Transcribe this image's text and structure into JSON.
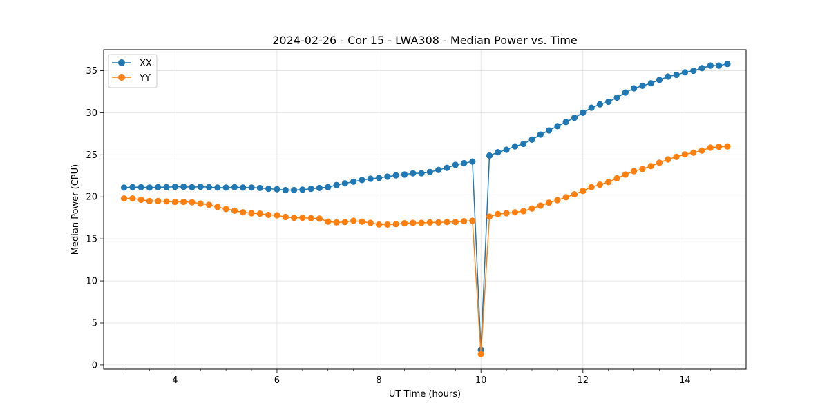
{
  "chart_data": {
    "type": "line",
    "title": "2024-02-26 - Cor 15 - LWA308 - Median Power vs. Time",
    "xlabel": "UT Time (hours)",
    "ylabel": "Median Power (CPU)",
    "xlim": [
      2.6,
      15.2
    ],
    "ylim": [
      -0.5,
      37.5
    ],
    "xticks": [
      4,
      6,
      8,
      10,
      12,
      14
    ],
    "yticks": [
      0,
      5,
      10,
      15,
      20,
      25,
      30,
      35
    ],
    "grid": true,
    "legend_position": "top-left",
    "x": [
      3.0,
      3.167,
      3.333,
      3.5,
      3.667,
      3.833,
      4.0,
      4.167,
      4.333,
      4.5,
      4.667,
      4.833,
      5.0,
      5.167,
      5.333,
      5.5,
      5.667,
      5.833,
      6.0,
      6.167,
      6.333,
      6.5,
      6.667,
      6.833,
      7.0,
      7.167,
      7.333,
      7.5,
      7.667,
      7.833,
      8.0,
      8.167,
      8.333,
      8.5,
      8.667,
      8.833,
      9.0,
      9.167,
      9.333,
      9.5,
      9.667,
      9.833,
      10.0,
      10.167,
      10.333,
      10.5,
      10.667,
      10.833,
      11.0,
      11.167,
      11.333,
      11.5,
      11.667,
      11.833,
      12.0,
      12.167,
      12.333,
      12.5,
      12.667,
      12.833,
      13.0,
      13.167,
      13.333,
      13.5,
      13.667,
      13.833,
      14.0,
      14.167,
      14.333,
      14.5,
      14.667,
      14.833
    ],
    "series": [
      {
        "name": "XX",
        "color": "#1f77b4",
        "values": [
          21.1,
          21.15,
          21.15,
          21.1,
          21.15,
          21.15,
          21.2,
          21.2,
          21.15,
          21.2,
          21.15,
          21.1,
          21.1,
          21.15,
          21.1,
          21.1,
          21.05,
          20.95,
          20.9,
          20.8,
          20.8,
          20.85,
          20.95,
          21.05,
          21.15,
          21.4,
          21.6,
          21.8,
          22.0,
          22.15,
          22.25,
          22.4,
          22.55,
          22.65,
          22.8,
          22.8,
          22.95,
          23.2,
          23.45,
          23.8,
          24.0,
          24.2,
          1.8,
          24.9,
          25.3,
          25.6,
          26.0,
          26.3,
          26.8,
          27.4,
          27.9,
          28.4,
          28.9,
          29.4,
          30.0,
          30.6,
          31.0,
          31.3,
          31.8,
          32.4,
          32.9,
          33.2,
          33.5,
          33.9,
          34.3,
          34.5,
          34.8,
          35.0,
          35.3,
          35.6,
          35.6,
          35.8
        ]
      },
      {
        "name": "YY",
        "color": "#ff7f0e",
        "values": [
          19.8,
          19.8,
          19.65,
          19.5,
          19.5,
          19.45,
          19.4,
          19.4,
          19.35,
          19.2,
          19.05,
          18.8,
          18.55,
          18.35,
          18.15,
          18.05,
          18.0,
          17.85,
          17.8,
          17.6,
          17.5,
          17.5,
          17.45,
          17.4,
          17.05,
          16.95,
          17.0,
          17.15,
          17.05,
          16.9,
          16.7,
          16.7,
          16.75,
          16.85,
          16.9,
          16.9,
          16.95,
          16.95,
          17.0,
          17.0,
          17.1,
          17.15,
          1.3,
          17.65,
          17.95,
          18.05,
          18.15,
          18.3,
          18.6,
          18.95,
          19.3,
          19.6,
          19.95,
          20.3,
          20.7,
          21.15,
          21.45,
          21.75,
          22.2,
          22.65,
          23.05,
          23.3,
          23.65,
          24.05,
          24.45,
          24.75,
          25.05,
          25.25,
          25.5,
          25.85,
          25.95,
          26.0
        ]
      }
    ]
  }
}
